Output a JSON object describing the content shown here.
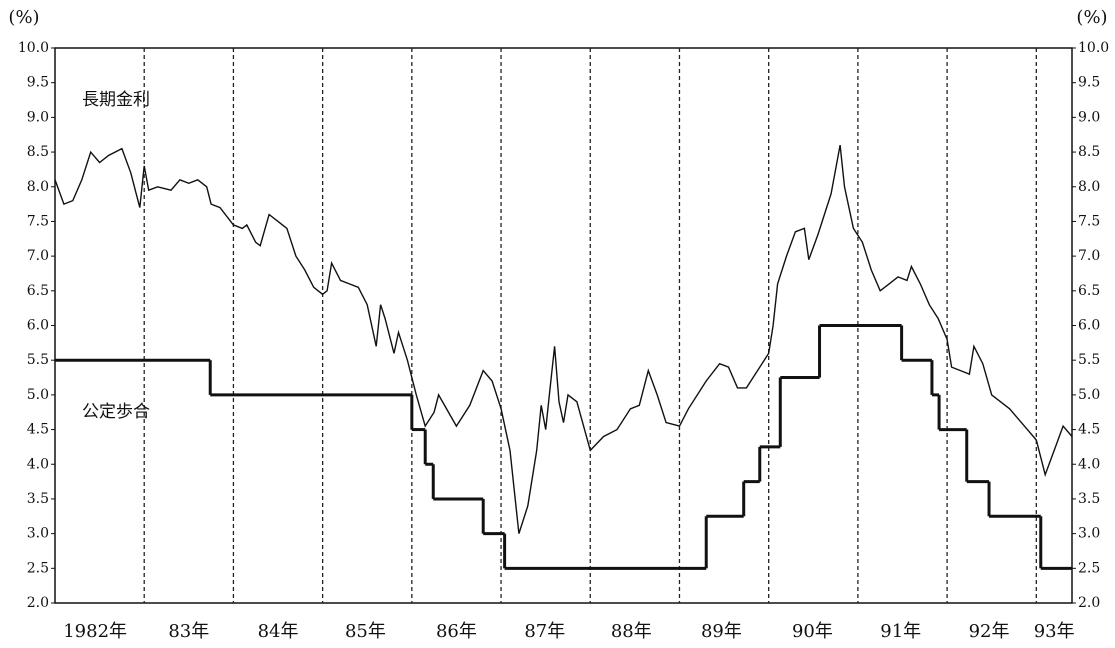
{
  "chart_data": {
    "type": "line",
    "y_label": "(%)",
    "y2_label": "(%)",
    "xlim": [
      1982,
      1993.4
    ],
    "ylim": [
      2,
      10
    ],
    "y2lim": [
      2,
      10
    ],
    "yticks": [
      {
        "value": 2,
        "label": "2.0"
      },
      {
        "value": 2.5,
        "label": "2.5"
      },
      {
        "value": 3,
        "label": "3.0"
      },
      {
        "value": 3.5,
        "label": "3.5"
      },
      {
        "value": 4,
        "label": "4.0"
      },
      {
        "value": 4.5,
        "label": "4.5"
      },
      {
        "value": 5,
        "label": "5.0"
      },
      {
        "value": 5.5,
        "label": "5.5"
      },
      {
        "value": 6,
        "label": "6.0"
      },
      {
        "value": 6.5,
        "label": "6.5"
      },
      {
        "value": 7,
        "label": "7.0"
      },
      {
        "value": 7.5,
        "label": "7.5"
      },
      {
        "value": 8,
        "label": "8.0"
      },
      {
        "value": 8.5,
        "label": "8.5"
      },
      {
        "value": 9,
        "label": "9.0"
      },
      {
        "value": 9.5,
        "label": "9.5"
      },
      {
        "value": 10,
        "label": "10.0"
      }
    ],
    "y2ticks": [
      {
        "value": 2,
        "label": "2.0"
      },
      {
        "value": 2.5,
        "label": "2.5"
      },
      {
        "value": 3,
        "label": "3.0"
      },
      {
        "value": 3.5,
        "label": "3.5"
      },
      {
        "value": 4,
        "label": "4.0"
      },
      {
        "value": 4.5,
        "label": "4.5"
      },
      {
        "value": 5,
        "label": "5.0"
      },
      {
        "value": 5.5,
        "label": "5.5"
      },
      {
        "value": 6,
        "label": "6.0"
      },
      {
        "value": 6.5,
        "label": "6.5"
      },
      {
        "value": 7,
        "label": "7.0"
      },
      {
        "value": 7.5,
        "label": "7.5"
      },
      {
        "value": 8,
        "label": "8.0"
      },
      {
        "value": 8.5,
        "label": "8.5"
      },
      {
        "value": 9,
        "label": "9.0"
      },
      {
        "value": 9.5,
        "label": "9.5"
      },
      {
        "value": 10,
        "label": "10.0"
      }
    ],
    "xticks": [
      {
        "value": 1982.45,
        "label": "1982年"
      },
      {
        "value": 1983.5,
        "label": "83年"
      },
      {
        "value": 1984.5,
        "label": "84年"
      },
      {
        "value": 1985.48,
        "label": "85年"
      },
      {
        "value": 1986.5,
        "label": "86年"
      },
      {
        "value": 1987.49,
        "label": "87年"
      },
      {
        "value": 1988.46,
        "label": "88年"
      },
      {
        "value": 1989.47,
        "label": "89年"
      },
      {
        "value": 1990.49,
        "label": "90年"
      },
      {
        "value": 1991.48,
        "label": "91年"
      },
      {
        "value": 1992.47,
        "label": "92年"
      },
      {
        "value": 1993.2,
        "label": "93年"
      }
    ],
    "x_gridlines": [
      1983,
      1984,
      1985,
      1986,
      1987,
      1988,
      1989,
      1990,
      1991,
      1992,
      1993
    ],
    "grid": true,
    "series": [
      {
        "name": "長期金利",
        "color": "#111111",
        "step": false,
        "x": [
          1982.0,
          1982.1,
          1982.2,
          1982.3,
          1982.4,
          1982.5,
          1982.6,
          1982.75,
          1982.85,
          1982.95,
          1983.0,
          1983.05,
          1983.15,
          1983.3,
          1983.4,
          1983.5,
          1983.6,
          1983.7,
          1983.75,
          1983.85,
          1984.0,
          1984.1,
          1984.15,
          1984.25,
          1984.3,
          1984.4,
          1984.5,
          1984.6,
          1984.7,
          1984.8,
          1984.9,
          1985.0,
          1985.05,
          1985.1,
          1985.2,
          1985.3,
          1985.4,
          1985.5,
          1985.6,
          1985.65,
          1985.7,
          1985.8,
          1985.85,
          1985.95,
          1986.05,
          1986.15,
          1986.25,
          1986.3,
          1986.5,
          1986.65,
          1986.8,
          1986.9,
          1987.0,
          1987.1,
          1987.2,
          1987.3,
          1987.4,
          1987.45,
          1987.5,
          1987.55,
          1987.6,
          1987.65,
          1987.7,
          1987.75,
          1987.85,
          1988.0,
          1988.15,
          1988.3,
          1988.45,
          1988.55,
          1988.65,
          1988.75,
          1988.85,
          1989.0,
          1989.1,
          1989.3,
          1989.45,
          1989.55,
          1989.65,
          1989.75,
          1989.9,
          1990.0,
          1990.05,
          1990.1,
          1990.2,
          1990.3,
          1990.4,
          1990.45,
          1990.55,
          1990.6,
          1990.7,
          1990.8,
          1990.85,
          1990.95,
          1991.05,
          1991.15,
          1991.25,
          1991.35,
          1991.45,
          1991.55,
          1991.6,
          1991.7,
          1991.8,
          1991.9,
          1992.0,
          1992.05,
          1992.15,
          1992.25,
          1992.3,
          1992.4,
          1992.5,
          1992.6,
          1992.7,
          1992.8,
          1992.9,
          1993.0,
          1993.1,
          1993.2,
          1993.3,
          1993.4
        ],
        "values": [
          8.1,
          7.75,
          7.8,
          8.1,
          8.5,
          8.35,
          8.45,
          8.55,
          8.2,
          7.7,
          8.3,
          7.95,
          8.0,
          7.95,
          8.1,
          8.05,
          8.1,
          8.0,
          7.75,
          7.7,
          7.45,
          7.4,
          7.45,
          7.2,
          7.15,
          7.6,
          7.5,
          7.4,
          7.0,
          6.8,
          6.55,
          6.45,
          6.5,
          6.9,
          6.65,
          6.6,
          6.55,
          6.3,
          5.7,
          6.3,
          6.1,
          5.6,
          5.9,
          5.5,
          5.0,
          4.55,
          4.75,
          5.0,
          4.55,
          4.85,
          5.35,
          5.2,
          4.8,
          4.2,
          3.0,
          3.4,
          4.2,
          4.85,
          4.5,
          5.1,
          5.7,
          4.9,
          4.6,
          5.0,
          4.9,
          4.2,
          4.4,
          4.5,
          4.8,
          4.85,
          5.35,
          5.0,
          4.6,
          4.55,
          4.8,
          5.2,
          5.45,
          5.4,
          5.1,
          5.1,
          5.4,
          5.6,
          6.0,
          6.6,
          7.0,
          7.35,
          7.4,
          6.95,
          7.3,
          7.5,
          7.9,
          8.6,
          8.0,
          7.4,
          7.2,
          6.8,
          6.5,
          6.6,
          6.7,
          6.65,
          6.85,
          6.6,
          6.3,
          6.1,
          5.8,
          5.4,
          5.35,
          5.3,
          5.7,
          5.45,
          5.0,
          4.9,
          4.8,
          4.65,
          4.5,
          4.35,
          3.85,
          4.2,
          4.55,
          4.4
        ]
      },
      {
        "name": "公定歩合",
        "color": "#111111",
        "step": true,
        "x": [
          1982.0,
          1983.74,
          1986.0,
          1986.15,
          1986.24,
          1986.8,
          1987.04,
          1989.3,
          1989.72,
          1989.9,
          1990.13,
          1990.57,
          1991.49,
          1991.83,
          1991.91,
          1992.22,
          1992.47,
          1993.05
        ],
        "values": [
          5.5,
          5.0,
          4.5,
          4.0,
          3.5,
          3.0,
          2.5,
          3.25,
          3.75,
          4.25,
          5.25,
          6.0,
          5.5,
          5.0,
          4.5,
          3.75,
          3.25,
          2.5
        ]
      }
    ]
  }
}
